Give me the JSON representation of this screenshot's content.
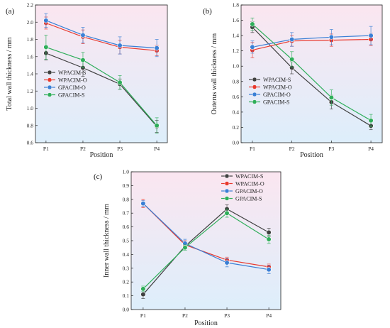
{
  "chart_data": [
    {
      "type": "line",
      "panel_label": "(a)",
      "xlabel": "Position",
      "ylabel": "Total wall thickness / mm",
      "categories": [
        "P1",
        "P2",
        "P3",
        "P4"
      ],
      "ylim": [
        0.6,
        2.2
      ],
      "yticks": [
        0.6,
        0.8,
        1.0,
        1.2,
        1.4,
        1.6,
        1.8,
        2.0,
        2.2
      ],
      "legend_position": "middle-left",
      "series": [
        {
          "name": "WPACIM-S",
          "color": "#404040",
          "values": [
            1.64,
            1.47,
            1.28,
            0.79
          ],
          "errors": [
            0.08,
            0.1,
            0.06,
            0.07
          ]
        },
        {
          "name": "WPACIM-O",
          "color": "#e8392e",
          "values": [
            1.99,
            1.83,
            1.71,
            1.67
          ],
          "errors": [
            0.07,
            0.08,
            0.08,
            0.06
          ]
        },
        {
          "name": "GPACIM-O",
          "color": "#3a7fd5",
          "values": [
            2.02,
            1.85,
            1.73,
            1.7
          ],
          "errors": [
            0.08,
            0.09,
            0.1,
            0.1
          ]
        },
        {
          "name": "GPACIM-S",
          "color": "#2fae5a",
          "values": [
            1.71,
            1.56,
            1.3,
            0.8
          ],
          "errors": [
            0.14,
            0.09,
            0.08,
            0.09
          ]
        }
      ]
    },
    {
      "type": "line",
      "panel_label": "(b)",
      "xlabel": "Position",
      "ylabel": "Outerus wall thickness / mm",
      "categories": [
        "P1",
        "P2",
        "P3",
        "P4"
      ],
      "ylim": [
        0.0,
        1.8
      ],
      "yticks": [
        0.0,
        0.2,
        0.4,
        0.6,
        0.8,
        1.0,
        1.2,
        1.4,
        1.6,
        1.8
      ],
      "legend_position": "middle-left",
      "series": [
        {
          "name": "WPACIM-S",
          "color": "#404040",
          "values": [
            1.51,
            0.98,
            0.53,
            0.22
          ],
          "errors": [
            0.07,
            0.08,
            0.09,
            0.05
          ]
        },
        {
          "name": "WPACIM-O",
          "color": "#e8392e",
          "values": [
            1.21,
            1.33,
            1.34,
            1.35
          ],
          "errors": [
            0.1,
            0.07,
            0.08,
            0.08
          ]
        },
        {
          "name": "GPACIM-O",
          "color": "#3a7fd5",
          "values": [
            1.25,
            1.35,
            1.38,
            1.4
          ],
          "errors": [
            0.08,
            0.09,
            0.1,
            0.12
          ]
        },
        {
          "name": "GPACIM-S",
          "color": "#2fae5a",
          "values": [
            1.55,
            1.09,
            0.59,
            0.29
          ],
          "errors": [
            0.08,
            0.1,
            0.1,
            0.08
          ]
        }
      ]
    },
    {
      "type": "line",
      "panel_label": "(c)",
      "xlabel": "Position",
      "ylabel": "Inner wall thickness / mm",
      "categories": [
        "P1",
        "P2",
        "P3",
        "P4"
      ],
      "ylim": [
        0.0,
        1.0
      ],
      "yticks": [
        0.0,
        0.1,
        0.2,
        0.3,
        0.4,
        0.5,
        0.6,
        0.7,
        0.8,
        0.9,
        1.0
      ],
      "legend_position": "top-right",
      "series": [
        {
          "name": "WPACIM-S",
          "color": "#404040",
          "values": [
            0.11,
            0.46,
            0.73,
            0.56
          ],
          "errors": [
            0.03,
            0.02,
            0.03,
            0.03
          ]
        },
        {
          "name": "WPACIM-O",
          "color": "#e8392e",
          "values": [
            0.77,
            0.47,
            0.36,
            0.31
          ],
          "errors": [
            0.03,
            0.03,
            0.02,
            0.02
          ]
        },
        {
          "name": "GPACIM-O",
          "color": "#3a7fd5",
          "values": [
            0.77,
            0.48,
            0.34,
            0.29
          ],
          "errors": [
            0.02,
            0.03,
            0.03,
            0.03
          ]
        },
        {
          "name": "GPACIM-S",
          "color": "#2fae5a",
          "values": [
            0.15,
            0.45,
            0.7,
            0.51
          ],
          "errors": [
            0.02,
            0.02,
            0.03,
            0.03
          ]
        }
      ]
    }
  ]
}
